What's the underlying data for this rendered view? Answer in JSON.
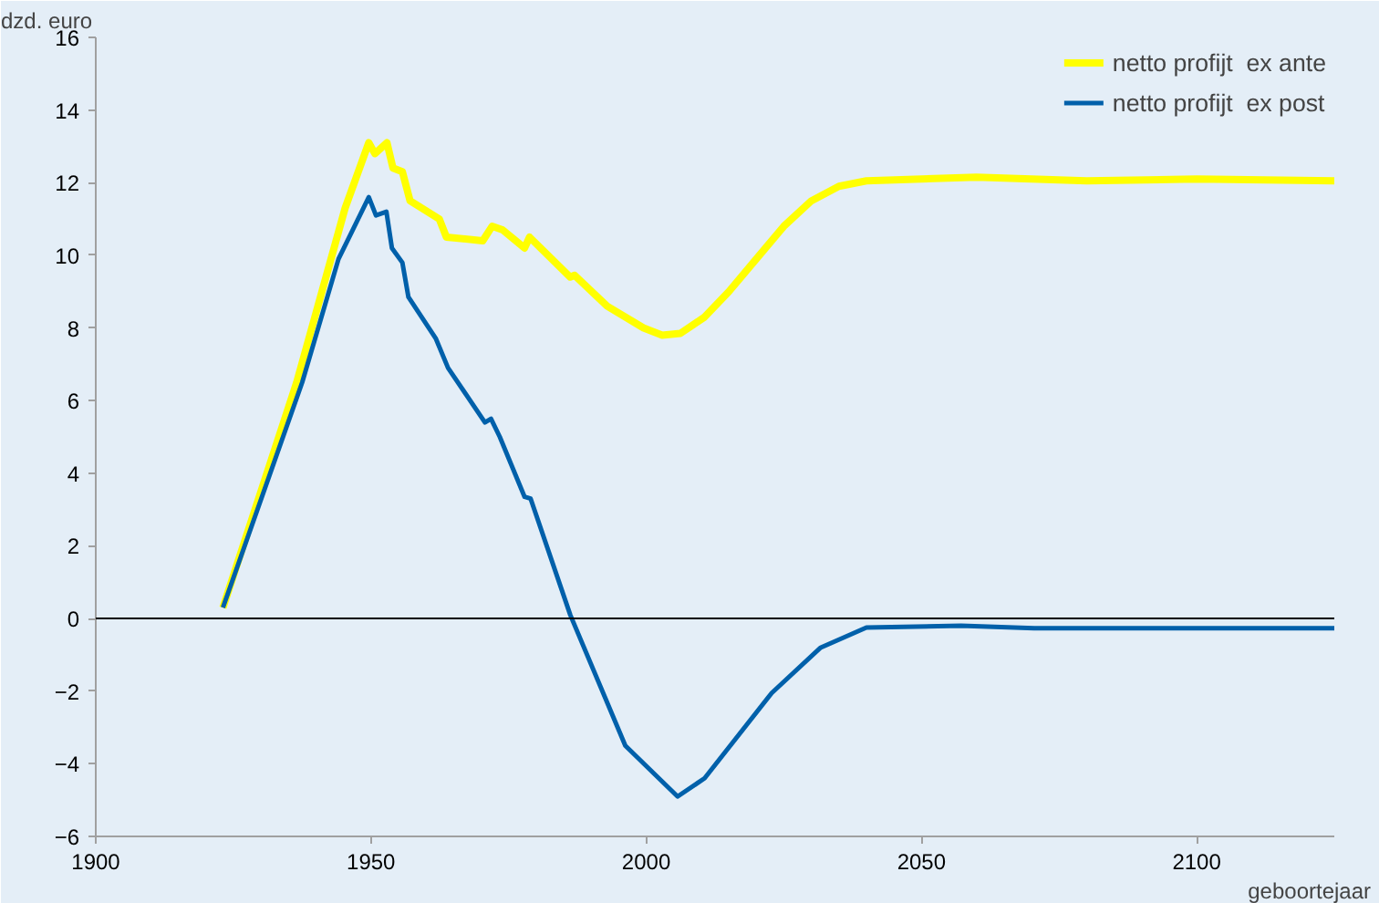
{
  "chart_data": {
    "type": "line",
    "xlabel": "geboortejaar",
    "ylabel": "dzd. euro",
    "xlim": [
      1900,
      2125
    ],
    "xticks": [
      1900,
      1950,
      2000,
      2050,
      2100
    ],
    "ylim": [
      -6,
      16
    ],
    "yticks": [
      -6,
      -4,
      -2,
      0,
      2,
      4,
      6,
      8,
      10,
      12,
      14,
      16
    ],
    "grid": false,
    "legend": "top right",
    "marker": "none",
    "line_style": "solid",
    "ref_lines": [
      {
        "axis": "y",
        "value": 0,
        "color": "#000000"
      }
    ],
    "series": [
      {
        "name": "netto profijt  ex ante",
        "color": "#ffff00",
        "x": [
          1923.1,
          1936.5,
          1942,
          1945.3,
          1949.6,
          1950.7,
          1952.9,
          1954,
          1955.7,
          1957.1,
          1962.4,
          1963.7,
          1970.3,
          1972,
          1973.9,
          1977.9,
          1978.8,
          1986.2,
          1987,
          1992.9,
          1999.5,
          2002.9,
          2006.2,
          2010.6,
          2015,
          2020,
          2025,
          2030,
          2035,
          2040,
          2060,
          2080,
          2100,
          2125
        ],
        "values": [
          0.3,
          6.5,
          9.5,
          11.3,
          13.1,
          12.8,
          13.1,
          12.4,
          12.3,
          11.5,
          11.0,
          10.5,
          10.4,
          10.8,
          10.7,
          10.2,
          10.5,
          9.4,
          9.45,
          8.6,
          8.0,
          7.8,
          7.85,
          8.3,
          9.0,
          9.9,
          10.8,
          11.5,
          11.9,
          12.05,
          12.15,
          12.05,
          12.1,
          12.05
        ]
      },
      {
        "name": "netto profijt  ex post",
        "color": "#0060aa",
        "x": [
          1923.1,
          1937.5,
          1944.1,
          1949.6,
          1950.9,
          1952.8,
          1953.8,
          1955.7,
          1956.8,
          1961.8,
          1964,
          1970.7,
          1971.8,
          1973.4,
          1977.9,
          1979,
          1986.2,
          1996.2,
          2005.7,
          2010.6,
          2022.8,
          2031.7,
          2040,
          2057.2,
          2070.5,
          2125
        ],
        "values": [
          0.3,
          6.5,
          9.9,
          11.6,
          11.1,
          11.2,
          10.2,
          9.8,
          8.85,
          7.7,
          6.9,
          5.4,
          5.5,
          5.0,
          3.35,
          3.3,
          0.1,
          -3.5,
          -4.9,
          -4.4,
          -2.05,
          -0.8,
          -0.25,
          -0.2,
          -0.27,
          -0.27
        ]
      }
    ]
  }
}
